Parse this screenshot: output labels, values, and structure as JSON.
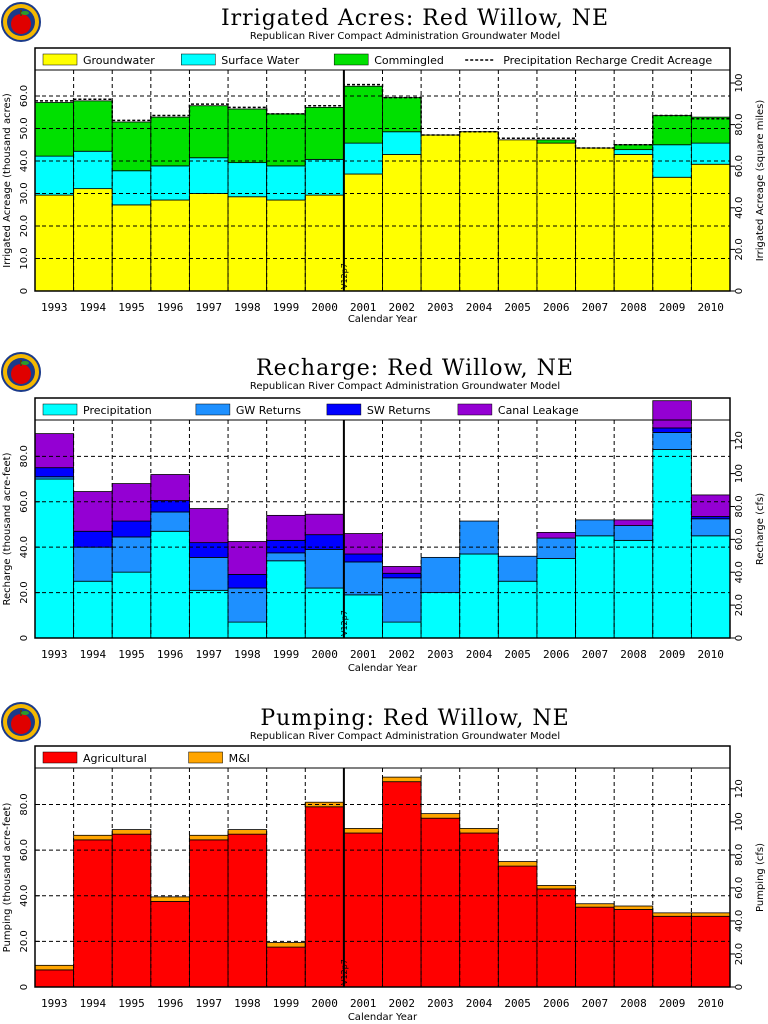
{
  "colors": {
    "groundwater": "#ffff00",
    "surface_water": "#00ffff",
    "commingled": "#00e000",
    "precipitation": "#00ffff",
    "gw_returns": "#1e90ff",
    "sw_returns": "#0000ff",
    "canal_leakage": "#9400d3",
    "agricultural": "#ff0000",
    "mi": "#ffa500",
    "logo_ring": "#f5b800",
    "logo_apple": "#e00000"
  },
  "logo_icon": "apple-logo-icon",
  "chart_data": [
    {
      "type": "bar",
      "stacked": true,
      "title": "Irrigated Acres: Red Willow, NE",
      "subtitle": "Republican River Compact Administration Groundwater Model",
      "xlabel": "Calendar Year",
      "ylabel": "Irrigated Acreage (thousand acres)",
      "y2label": "Irrigated Acreage (square miles)",
      "ylim": [
        0,
        68
      ],
      "yticks": [
        0,
        10.0,
        20.0,
        30.0,
        40.0,
        50.0,
        60.0
      ],
      "yticklabels": [
        "0",
        "10.0",
        "20.0",
        "30.0",
        "40.0",
        "50.0",
        "60.0"
      ],
      "y2lim": [
        0,
        106.25
      ],
      "y2ticks": [
        0,
        20.0,
        40.0,
        60.0,
        80.0,
        100
      ],
      "y2ticklabels": [
        "0",
        "20.0",
        "40.0",
        "60.0",
        "80.0",
        "100"
      ],
      "grid": true,
      "legend_position": "top",
      "marker": {
        "label": "V12p7",
        "x": 2000.5
      },
      "categories": [
        "1993",
        "1994",
        "1995",
        "1996",
        "1997",
        "1998",
        "1999",
        "2000",
        "2001",
        "2002",
        "2003",
        "2004",
        "2005",
        "2006",
        "2007",
        "2008",
        "2009",
        "2010"
      ],
      "series": [
        {
          "name": "Groundwater",
          "color_key": "groundwater",
          "values": [
            29.5,
            31.5,
            26.5,
            28.0,
            30.0,
            29.0,
            28.0,
            29.5,
            36.0,
            42.0,
            48.0,
            49.0,
            46.5,
            45.5,
            44.0,
            42.0,
            35.0,
            39.0
          ]
        },
        {
          "name": "Surface Water",
          "color_key": "surface_water",
          "values": [
            12.0,
            11.5,
            10.5,
            10.5,
            11.0,
            10.5,
            10.5,
            11.0,
            9.5,
            7.0,
            0,
            0,
            0,
            0,
            0,
            1.5,
            10.0,
            6.5
          ]
        },
        {
          "name": "Commingled",
          "color_key": "commingled",
          "values": [
            16.5,
            15.5,
            15.0,
            15.0,
            16.0,
            16.5,
            16.0,
            16.0,
            17.5,
            10.5,
            0,
            0,
            0,
            1.0,
            0,
            1.5,
            9.0,
            8.0
          ]
        }
      ],
      "line_series": {
        "name": "Precipitation Recharge Credit Acreage",
        "values": [
          58.5,
          59.0,
          52.5,
          54.0,
          57.5,
          56.5,
          54.5,
          57.0,
          63.5,
          59.5,
          48.0,
          49.0,
          47.0,
          47.0,
          44.0,
          45.0,
          54.0,
          53.0
        ]
      }
    },
    {
      "type": "bar",
      "stacked": true,
      "title": "Recharge: Red Willow, NE",
      "subtitle": "Republican River Compact Administration Groundwater Model",
      "xlabel": "Calendar Year",
      "ylabel": "Recharge (thousand acre-feet)",
      "y2label": "Recharge (cfs)",
      "ylim": [
        0,
        96
      ],
      "yticks": [
        0,
        20.0,
        40.0,
        60.0,
        80.0
      ],
      "yticklabels": [
        "0",
        "20.0",
        "40.0",
        "60.0",
        "80.0"
      ],
      "y2lim": [
        0,
        132.6
      ],
      "y2ticks": [
        0,
        20.0,
        40.0,
        60.0,
        80.0,
        100,
        120
      ],
      "y2ticklabels": [
        "0",
        "20.0",
        "40.0",
        "60.0",
        "80.0",
        "100",
        "120"
      ],
      "grid": true,
      "legend_position": "top",
      "marker": {
        "label": "V12p7",
        "x": 2000.5
      },
      "categories": [
        "1993",
        "1994",
        "1995",
        "1996",
        "1997",
        "1998",
        "1999",
        "2000",
        "2001",
        "2002",
        "2003",
        "2004",
        "2005",
        "2006",
        "2007",
        "2008",
        "2009",
        "2010"
      ],
      "series": [
        {
          "name": "Precipitation",
          "color_key": "precipitation",
          "values": [
            70.0,
            25.0,
            29.0,
            47.0,
            21.0,
            7.0,
            34.0,
            22.0,
            19.0,
            7.0,
            20.0,
            37.0,
            25.0,
            35.0,
            45.0,
            43.0,
            83.0,
            45.0
          ]
        },
        {
          "name": "GW Returns",
          "color_key": "gw_returns",
          "values": [
            1.0,
            15.0,
            15.5,
            8.5,
            14.5,
            15.0,
            3.5,
            17.0,
            14.5,
            19.5,
            15.5,
            14.5,
            11.0,
            9.0,
            7.0,
            6.5,
            7.5,
            7.5
          ]
        },
        {
          "name": "SW Returns",
          "color_key": "sw_returns",
          "values": [
            4.0,
            7.0,
            7.0,
            5.0,
            6.5,
            6.0,
            5.5,
            6.5,
            3.5,
            2.0,
            0,
            0,
            0,
            0,
            0,
            0,
            2.0,
            1.0
          ]
        },
        {
          "name": "Canal Leakage",
          "color_key": "canal_leakage",
          "values": [
            15.0,
            17.5,
            16.5,
            11.5,
            15.0,
            14.5,
            11.0,
            9.0,
            9.0,
            3.0,
            0,
            0,
            0,
            2.5,
            0,
            2.5,
            12.0,
            9.5
          ]
        }
      ]
    },
    {
      "type": "bar",
      "stacked": true,
      "title": "Pumping: Red Willow, NE",
      "subtitle": "Republican River Compact Administration Groundwater Model",
      "xlabel": "Calendar Year",
      "ylabel": "Pumping (thousand acre-feet)",
      "y2label": "Pumping (cfs)",
      "ylim": [
        0,
        96
      ],
      "yticks": [
        0,
        20.0,
        40.0,
        60.0,
        80.0
      ],
      "yticklabels": [
        "0",
        "20.0",
        "40.0",
        "60.0",
        "80.0"
      ],
      "y2lim": [
        0,
        132.6
      ],
      "y2ticks": [
        0,
        20.0,
        40.0,
        60.0,
        80.0,
        100,
        120
      ],
      "y2ticklabels": [
        "0",
        "20.0",
        "40.0",
        "60.0",
        "80.0",
        "100",
        "120"
      ],
      "grid": true,
      "legend_position": "top",
      "marker": {
        "label": "V12p7",
        "x": 2000.5
      },
      "categories": [
        "1993",
        "1994",
        "1995",
        "1996",
        "1997",
        "1998",
        "1999",
        "2000",
        "2001",
        "2002",
        "2003",
        "2004",
        "2005",
        "2006",
        "2007",
        "2008",
        "2009",
        "2010"
      ],
      "series": [
        {
          "name": "Agricultural",
          "color_key": "agricultural",
          "values": [
            7.5,
            64.5,
            67.0,
            37.5,
            64.5,
            67.0,
            17.5,
            79.0,
            67.5,
            90.0,
            74.0,
            67.5,
            53.0,
            43.0,
            35.0,
            34.0,
            31.0,
            31.0
          ]
        },
        {
          "name": "M&I",
          "color_key": "mi",
          "values": [
            2.0,
            2.0,
            2.0,
            2.0,
            2.0,
            2.0,
            2.0,
            2.0,
            2.0,
            2.0,
            2.0,
            2.0,
            2.0,
            1.5,
            1.5,
            1.5,
            1.5,
            1.5
          ]
        }
      ]
    }
  ]
}
